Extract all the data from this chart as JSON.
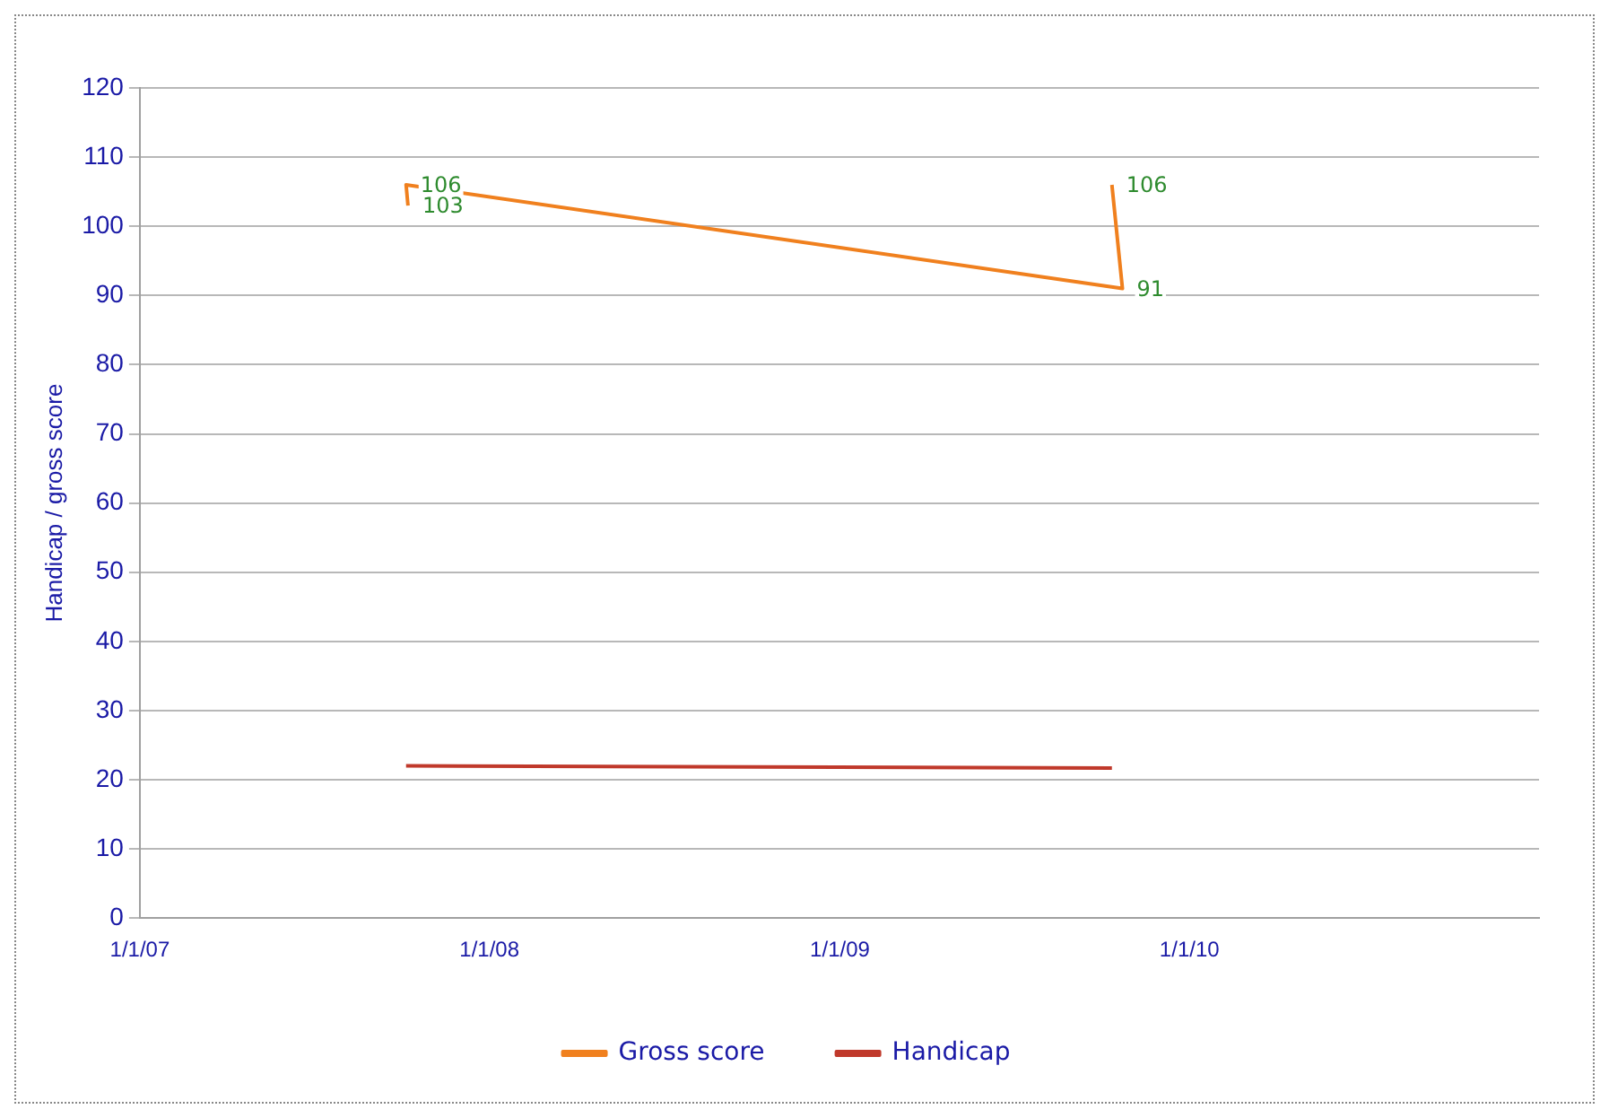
{
  "chart_data": {
    "type": "line",
    "ylabel": "Handicap / gross score",
    "xlim": [
      "2007-01-01",
      "2011-01-01"
    ],
    "xticks": [
      {
        "value": "2007-01-01",
        "label": "1/1/07"
      },
      {
        "value": "2008-01-01",
        "label": "1/1/08"
      },
      {
        "value": "2009-01-01",
        "label": "1/1/09"
      },
      {
        "value": "2010-01-01",
        "label": "1/1/10"
      }
    ],
    "ylim": [
      0,
      120
    ],
    "yticks": [
      0,
      10,
      20,
      30,
      40,
      50,
      60,
      70,
      80,
      90,
      100,
      110,
      120
    ],
    "grid": "y",
    "legend": "bottom",
    "marker": "none",
    "line_style": "solid",
    "series": [
      {
        "name": "Gross score",
        "color": "#f0801e",
        "x": [
          "2007-10-08",
          "2007-10-06",
          "2009-10-23",
          "2009-10-12"
        ],
        "values": [
          103,
          106,
          91,
          106
        ],
        "value_labels": [
          "103",
          "106",
          "91",
          "106"
        ]
      },
      {
        "name": "Handicap",
        "color": "#c0392b",
        "x": [
          "2007-10-06",
          "2009-10-12"
        ],
        "values": [
          22,
          21.7
        ]
      }
    ]
  }
}
